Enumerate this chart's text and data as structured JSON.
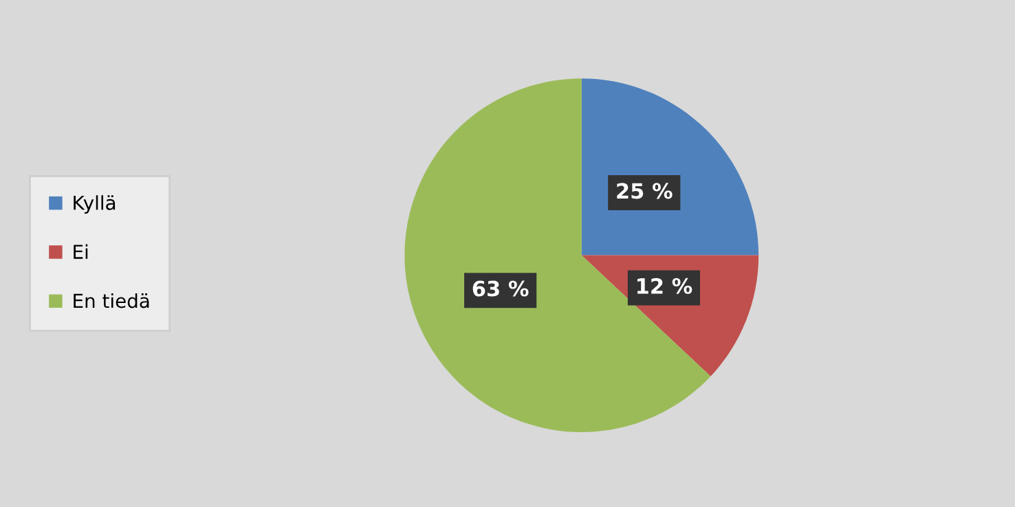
{
  "chart_data": {
    "type": "pie",
    "categories": [
      "Kyllä",
      "Ei",
      "En tiedä"
    ],
    "values": [
      25,
      12,
      63
    ],
    "colors": [
      "#4f81bd",
      "#c0504d",
      "#9bbb59"
    ],
    "value_labels": [
      "25 %",
      "12 %",
      "63 %"
    ],
    "legend": "left"
  }
}
